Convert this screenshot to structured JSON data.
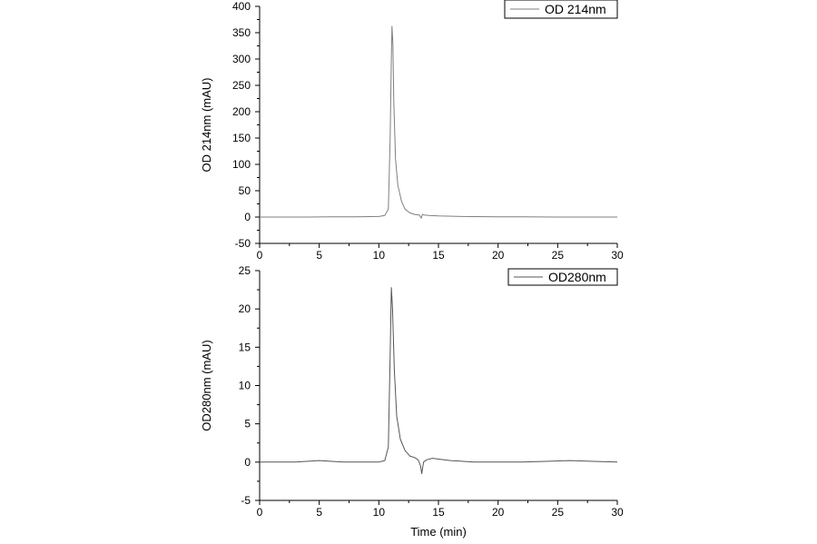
{
  "chart_data": [
    {
      "type": "line",
      "ylabel": "OD 214nm (mAU)",
      "xlabel": "",
      "xlim": [
        0,
        30
      ],
      "ylim": [
        -50,
        400
      ],
      "xticks": [
        "0",
        "5",
        "10",
        "15",
        "20",
        "25",
        "30"
      ],
      "yticks": [
        "-50",
        "0",
        "50",
        "100",
        "150",
        "200",
        "250",
        "300",
        "350",
        "400"
      ],
      "legend_position": "top-right",
      "line_color": "#7f7f7f",
      "series": [
        {
          "name": "OD 214nm",
          "x": [
            0,
            2,
            4,
            6,
            8,
            10,
            10.5,
            10.8,
            10.95,
            11.05,
            11.1,
            11.18,
            11.25,
            11.4,
            11.6,
            11.9,
            12.2,
            12.6,
            13.0,
            13.4,
            13.55,
            13.65,
            13.8,
            14.2,
            15,
            17,
            20,
            22,
            25,
            28,
            30
          ],
          "y": [
            0,
            0,
            0,
            0.5,
            0.5,
            1,
            3,
            15,
            150,
            300,
            362,
            330,
            220,
            110,
            60,
            30,
            15,
            8,
            5,
            4,
            -2,
            5,
            4,
            3,
            2,
            1,
            0.5,
            0.5,
            0,
            0,
            0
          ]
        }
      ]
    },
    {
      "type": "line",
      "ylabel": "OD280nm (mAU)",
      "xlabel": "Time (min)",
      "xlim": [
        0,
        30
      ],
      "ylim": [
        -5,
        25
      ],
      "xticks": [
        "0",
        "5",
        "10",
        "15",
        "20",
        "25",
        "30"
      ],
      "yticks": [
        "-5",
        "0",
        "5",
        "10",
        "15",
        "20",
        "25"
      ],
      "legend_position": "top-right",
      "line_color": "#555555",
      "series": [
        {
          "name": "OD280nm",
          "x": [
            0,
            3,
            5,
            7,
            9,
            10,
            10.5,
            10.8,
            10.95,
            11.05,
            11.15,
            11.3,
            11.5,
            11.8,
            12.2,
            12.6,
            13.0,
            13.3,
            13.5,
            13.6,
            13.75,
            14.0,
            14.5,
            15,
            16,
            18,
            20,
            22,
            24,
            26,
            28,
            30
          ],
          "y": [
            0,
            0,
            0.2,
            0,
            0,
            0,
            0.2,
            2,
            14,
            22.8,
            20,
            12,
            6,
            3,
            1.5,
            0.8,
            0.6,
            0.3,
            -0.5,
            -1.5,
            0,
            0.3,
            0.5,
            0.4,
            0.2,
            0,
            0,
            0,
            0.1,
            0.2,
            0.1,
            0
          ]
        }
      ]
    }
  ]
}
